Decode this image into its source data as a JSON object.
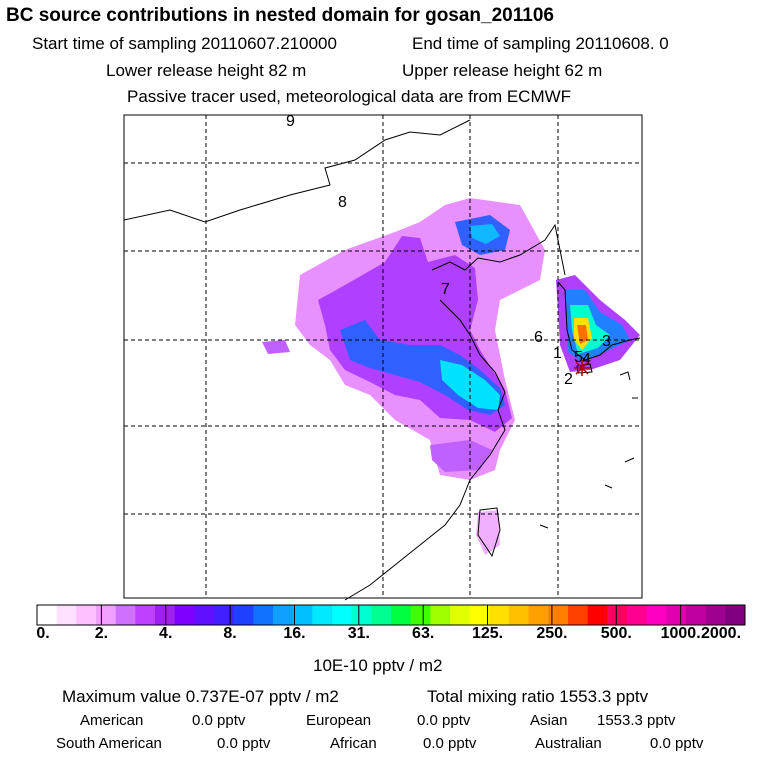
{
  "header": {
    "title": "BC  source contributions in nested domain for gosan_201106",
    "start_time": "Start time of sampling 20110607.210000",
    "end_time": "End time of sampling 20110608.     0",
    "lower_release": "Lower release height   82 m",
    "upper_release": "Upper release height   62 m",
    "tracer_note": "Passive tracer used, meteorological data are from ECMWF"
  },
  "map": {
    "trajectory_labels": [
      "9",
      "8",
      "7",
      "6",
      "5",
      "4",
      "3",
      "2",
      "1"
    ],
    "receptor_marker": "gosan-receptor-star"
  },
  "colorbar": {
    "ticks": [
      "0.",
      "2.",
      "4.",
      "8.",
      "16.",
      "31.",
      "63.",
      "125.",
      "250.",
      "500.",
      "1000.",
      "2000."
    ],
    "colors": [
      "#ffffff",
      "#ffe0ff",
      "#ffc0ff",
      "#f0a0ff",
      "#d070ff",
      "#c040ff",
      "#a020f0",
      "#8000ff",
      "#6010ff",
      "#4020ff",
      "#2040ff",
      "#1070ff",
      "#10a0ff",
      "#00c0ff",
      "#00e8ff",
      "#00ffff",
      "#00ffd0",
      "#00ff90",
      "#00ff40",
      "#40ff00",
      "#a0ff00",
      "#e0ff00",
      "#ffff00",
      "#ffe000",
      "#ffc000",
      "#ffa000",
      "#ff8000",
      "#ff4000",
      "#ff0000",
      "#ff0060",
      "#ff0090",
      "#ff00c0",
      "#e000b0",
      "#c000a0",
      "#a00090",
      "#800080"
    ],
    "unit_label": "10E-10 pptv / m2"
  },
  "stats": {
    "maximum": "Maximum value  0.737E-07 pptv / m2",
    "total": "Total mixing ratio      1553.3 pptv",
    "american_label": "American",
    "american_value": "0.0 pptv",
    "european_label": "European",
    "european_value": "0.0 pptv",
    "asian_label": "Asian",
    "asian_value": "1553.3 pptv",
    "south_american_label": "South American",
    "south_american_value": "0.0 pptv",
    "african_label": "African",
    "african_value": "0.0 pptv",
    "australian_label": "Australian",
    "australian_value": "0.0 pptv"
  }
}
